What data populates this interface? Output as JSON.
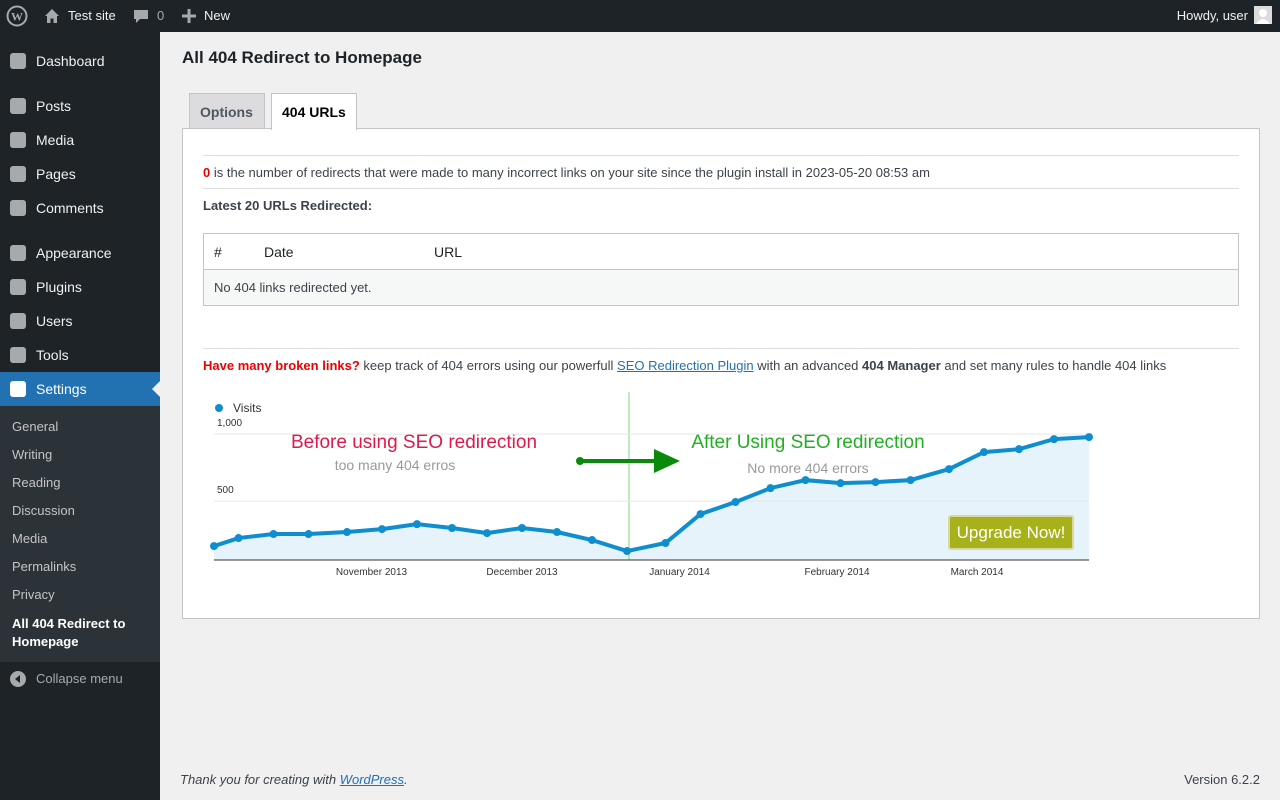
{
  "admin_bar": {
    "site_name": "Test site",
    "comments": 0,
    "new": "New",
    "greeting": "Howdy, user"
  },
  "menu": {
    "items": [
      "Dashboard",
      "Posts",
      "Media",
      "Pages",
      "Comments",
      "Appearance",
      "Plugins",
      "Users",
      "Tools",
      "Settings"
    ],
    "submenu": [
      "General",
      "Writing",
      "Reading",
      "Discussion",
      "Media",
      "Permalinks",
      "Privacy",
      "All 404 Redirect to Homepage"
    ],
    "collapse": "Collapse menu"
  },
  "page": {
    "title": "All 404 Redirect to Homepage",
    "tabs": [
      "Options",
      "404 URLs"
    ],
    "count": 0,
    "count_text": "is the number of redirects that were made to many incorrect links on your site since the plugin install in 2023-05-20 08:53 am",
    "latest": "Latest 20 URLs Redirected:",
    "table": {
      "headers": [
        "#",
        "Date",
        "URL"
      ],
      "empty": "No 404 links redirected yet."
    },
    "promo": {
      "lead": "Have many broken links?",
      "text1": " keep track of 404 errors using our powerfull ",
      "link": "SEO Redirection Plugin",
      "text2": " with an advanced ",
      "bold": "404 Manager",
      "text3": " and set many rules to handle 404 links"
    }
  },
  "chart_data": {
    "type": "line",
    "x": [
      0,
      0.7,
      1.7,
      2.7,
      3.8,
      4.8,
      5.8,
      6.8,
      7.8,
      8.8,
      9.8,
      10.8,
      11.8,
      12.9,
      13.9,
      14.9,
      15.9,
      16.9,
      17.9,
      18.9,
      19.9,
      21.0,
      22.0,
      23.0,
      24.0,
      25.0
    ],
    "series": [
      {
        "name": "Visits",
        "color": "#0e8ecf",
        "values": [
          164,
          224,
          254,
          254,
          269,
          291,
          328,
          299,
          261,
          299,
          269,
          209,
          127,
          187,
          403,
          493,
          597,
          657,
          634,
          642,
          657,
          739,
          866,
          888,
          963,
          978
        ]
      }
    ],
    "xlim": [
      0,
      25
    ],
    "xticks": [
      {
        "value": 4.5,
        "label": "November 2013"
      },
      {
        "value": 8.8,
        "label": "December 2013"
      },
      {
        "value": 13.3,
        "label": "January 2014"
      },
      {
        "value": 17.8,
        "label": "February 2014"
      },
      {
        "value": 21.8,
        "label": "March 2014"
      }
    ],
    "ylim": [
      60,
      1300
    ],
    "yticks": [
      500,
      {
        "value": 1000,
        "label": "1,000"
      }
    ],
    "grid": true,
    "annotations": [
      "Before using SEO redirection",
      "too many 404 erros",
      "After Using SEO redirection",
      "No more 404 errors"
    ],
    "button": "Upgrade Now!"
  },
  "footer": {
    "thanks": "Thank you for creating with ",
    "link": "WordPress",
    "end": ".",
    "version": "Version 6.2.2"
  }
}
